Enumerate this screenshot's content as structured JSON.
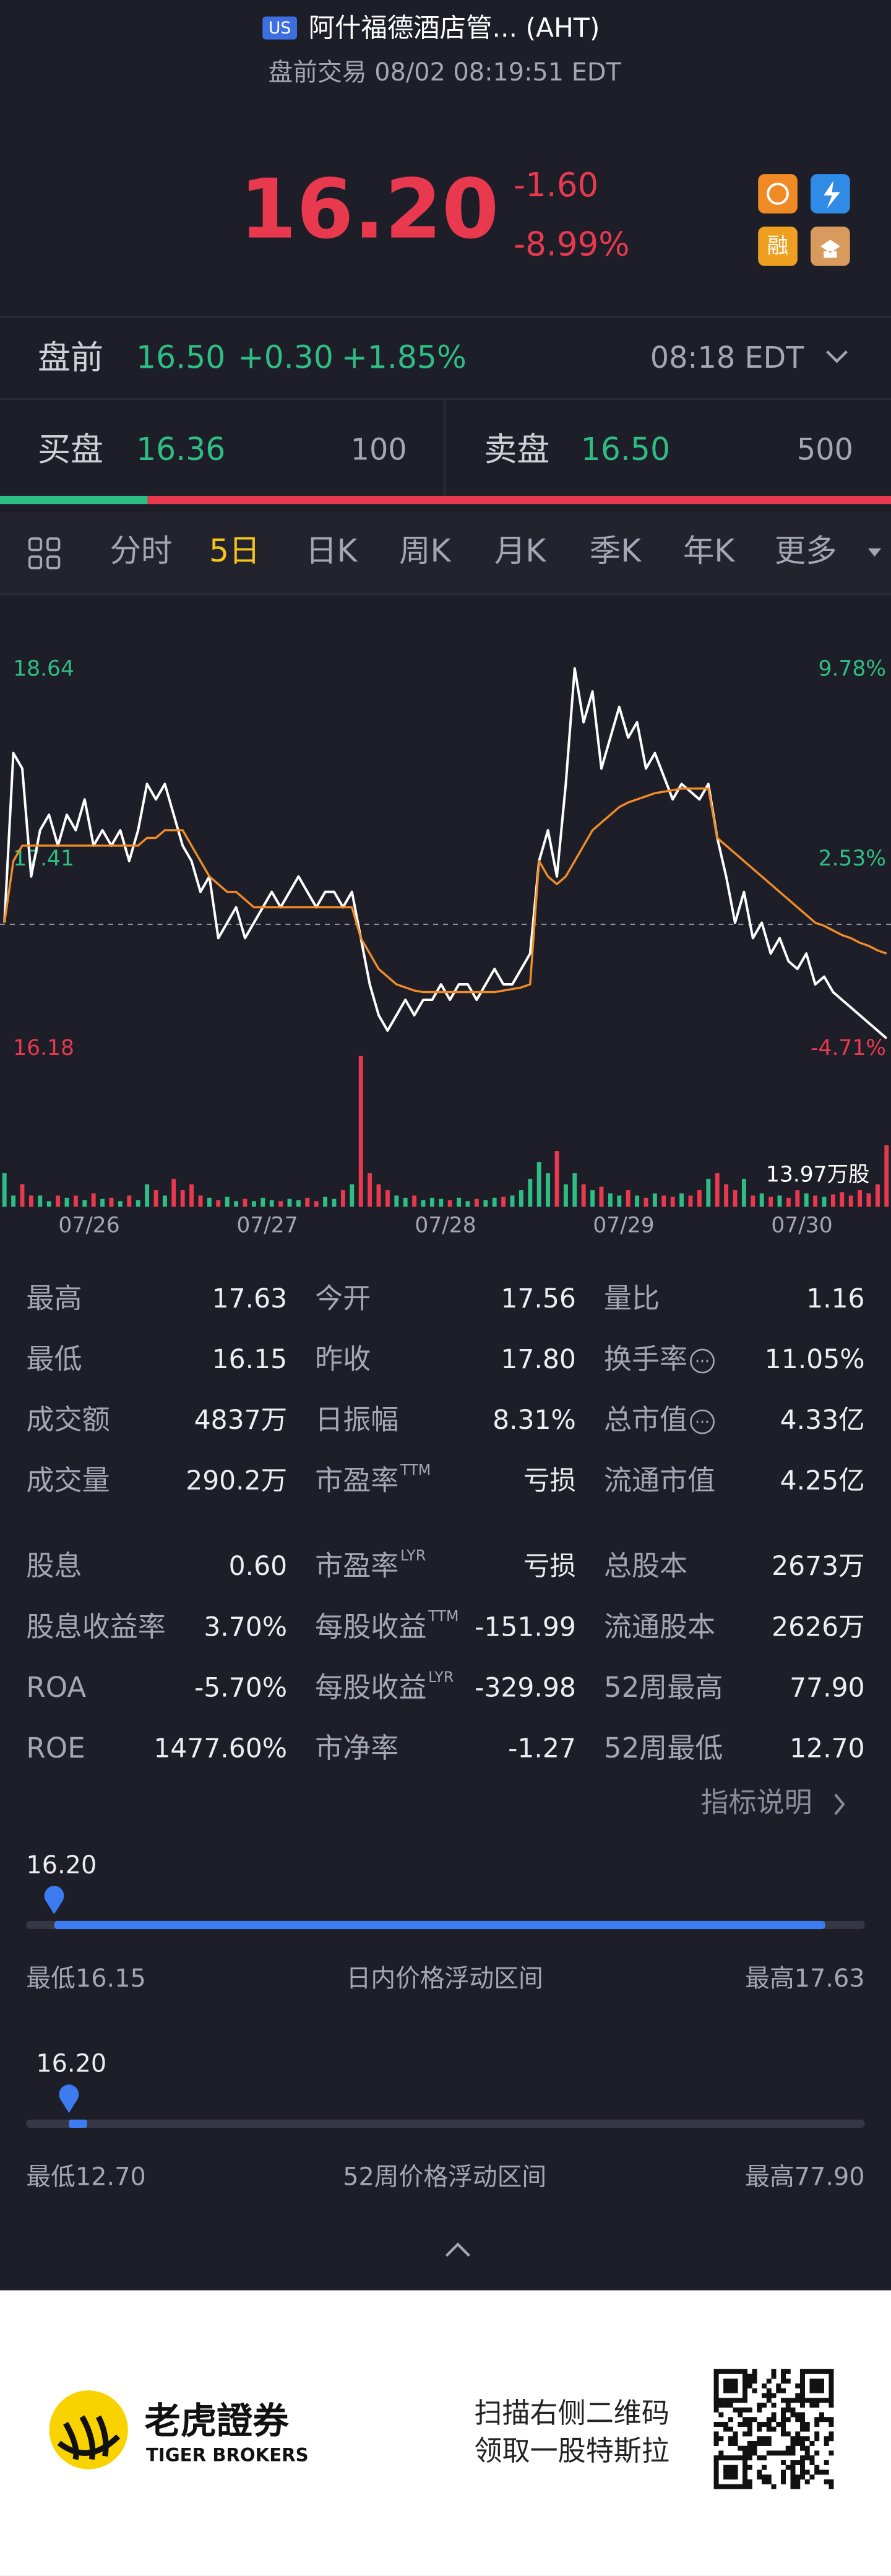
{
  "header": {
    "exchange": "US",
    "name": "阿什福德酒店管... (AHT)",
    "status": "盘前交易 08/02 08:19:51 EDT"
  },
  "quote": {
    "price": "16.20",
    "change": "-1.60",
    "change_pct": "-8.99%",
    "badge": "融"
  },
  "premarket": {
    "label": "盘前",
    "price": "16.50",
    "change": "+0.30",
    "change_pct": "+1.85%",
    "time": "08:18 EDT"
  },
  "bid": {
    "label": "买盘",
    "price": "16.36",
    "size": "100"
  },
  "ask": {
    "label": "卖盘",
    "price": "16.50",
    "size": "500"
  },
  "tabs": {
    "items": [
      "分时",
      "5日",
      "日K",
      "周K",
      "月K",
      "季K",
      "年K",
      "更多"
    ],
    "active": 1
  },
  "chart_data": {
    "type": "line",
    "days": [
      "07/26",
      "07/27",
      "07/28",
      "07/29",
      "07/30"
    ],
    "ylim": [
      16.18,
      18.64
    ],
    "yticks": [
      18.64,
      17.41,
      16.18
    ],
    "y2lim": [
      -4.71,
      9.78
    ],
    "y2ticks": [
      {
        "value": 9.78,
        "label": "9.78%"
      },
      {
        "value": 2.53,
        "label": "2.53%"
      },
      {
        "value": -4.71,
        "label": "-4.71%"
      }
    ],
    "up_color": "#2ebd85",
    "down_color": "#e8394f",
    "series": [
      {
        "color": "#ffffff",
        "values": [
          17.0,
          18.1,
          18.0,
          17.3,
          17.6,
          17.7,
          17.5,
          17.7,
          17.6,
          17.8,
          17.5,
          17.6,
          17.5,
          17.6,
          17.4,
          17.6,
          17.9,
          17.8,
          17.9,
          17.7,
          17.5,
          17.4,
          17.2,
          17.3,
          16.9,
          17.0,
          17.1,
          16.9,
          17.0,
          17.1,
          17.2,
          17.1,
          17.2,
          17.3,
          17.2,
          17.1,
          17.2,
          17.2,
          17.1,
          17.2,
          16.9,
          16.6,
          16.4,
          16.3,
          16.4,
          16.5,
          16.4,
          16.5,
          16.5,
          16.6,
          16.5,
          16.6,
          16.6,
          16.5,
          16.6,
          16.7,
          16.6,
          16.6,
          16.7,
          16.8,
          17.4,
          17.6,
          17.3,
          17.9,
          18.65,
          18.3,
          18.5,
          18.0,
          18.2,
          18.4,
          18.2,
          18.3,
          18.0,
          18.1,
          17.95,
          17.8,
          17.9,
          17.85,
          17.8,
          17.9,
          17.55,
          17.3,
          17.0,
          17.2,
          16.9,
          17.0,
          16.8,
          16.9,
          16.75,
          16.7,
          16.8,
          16.6,
          16.65,
          16.55,
          16.5,
          16.45,
          16.4,
          16.35,
          16.3,
          16.25
        ]
      },
      {
        "color": "#f28c28",
        "values": [
          17.0,
          17.4,
          17.5,
          17.5,
          17.5,
          17.5,
          17.5,
          17.5,
          17.5,
          17.5,
          17.5,
          17.5,
          17.5,
          17.5,
          17.5,
          17.5,
          17.55,
          17.55,
          17.6,
          17.6,
          17.6,
          17.5,
          17.4,
          17.3,
          17.25,
          17.2,
          17.2,
          17.15,
          17.1,
          17.1,
          17.1,
          17.1,
          17.1,
          17.1,
          17.1,
          17.1,
          17.1,
          17.1,
          17.1,
          17.1,
          16.9,
          16.8,
          16.7,
          16.65,
          16.6,
          16.58,
          16.56,
          16.55,
          16.55,
          16.55,
          16.55,
          16.55,
          16.55,
          16.55,
          16.55,
          16.55,
          16.56,
          16.57,
          16.58,
          16.6,
          17.4,
          17.3,
          17.25,
          17.3,
          17.4,
          17.5,
          17.6,
          17.65,
          17.7,
          17.75,
          17.78,
          17.8,
          17.82,
          17.84,
          17.85,
          17.86,
          17.87,
          17.87,
          17.87,
          17.87,
          17.55,
          17.5,
          17.45,
          17.4,
          17.35,
          17.3,
          17.25,
          17.2,
          17.15,
          17.1,
          17.05,
          17.0,
          16.98,
          16.95,
          16.92,
          16.9,
          16.87,
          16.85,
          16.82,
          16.8
        ]
      }
    ],
    "volume": {
      "scale": {
        "value": 13.97,
        "label": "13.97万股"
      },
      "values": [
        3,
        1,
        2,
        1,
        1,
        0.5,
        1,
        0.8,
        1,
        0.6,
        1.2,
        0.7,
        0.8,
        0.5,
        1,
        0.6,
        2,
        1.5,
        1,
        2.5,
        1.5,
        2,
        1,
        0.8,
        0.6,
        0.9,
        0.5,
        0.7,
        0.5,
        0.8,
        0.6,
        0.5,
        0.7,
        0.6,
        0.8,
        0.5,
        0.9,
        0.7,
        1.5,
        2,
        13.5,
        3,
        2,
        1.5,
        1,
        0.8,
        1,
        0.6,
        0.8,
        0.7,
        0.6,
        0.8,
        0.5,
        0.7,
        0.6,
        0.8,
        0.9,
        1,
        1.5,
        2.5,
        4,
        3,
        5,
        2,
        3,
        2,
        1.5,
        1.8,
        1.2,
        1,
        1.5,
        1,
        0.8,
        1.2,
        1,
        0.9,
        1.2,
        1,
        1.5,
        2.5,
        3,
        2,
        1.5,
        2.5,
        1,
        1.2,
        0.9,
        1,
        0.8,
        1.5,
        1.2,
        1,
        0.9,
        1.1,
        1.3,
        1,
        1.5,
        1.2,
        2,
        5.5
      ]
    }
  },
  "stats": [
    [
      {
        "label": "最高",
        "value": "17.63"
      },
      {
        "label": "今开",
        "value": "17.56"
      },
      {
        "label": "量比",
        "value": "1.16"
      }
    ],
    [
      {
        "label": "最低",
        "value": "16.15"
      },
      {
        "label": "昨收",
        "value": "17.80"
      },
      {
        "label": "换手率",
        "info": true,
        "value": "11.05%"
      }
    ],
    [
      {
        "label": "成交额",
        "value": "4837万"
      },
      {
        "label": "日振幅",
        "value": "8.31%"
      },
      {
        "label": "总市值",
        "info": true,
        "value": "4.33亿"
      }
    ],
    [
      {
        "label": "成交量",
        "value": "290.2万"
      },
      {
        "label": "市盈率",
        "sup": "TTM",
        "value": "亏损"
      },
      {
        "label": "流通市值",
        "value": "4.25亿"
      }
    ],
    [
      {
        "label": "股息",
        "value": "0.60"
      },
      {
        "label": "市盈率",
        "sup": "LYR",
        "value": "亏损"
      },
      {
        "label": "总股本",
        "value": "2673万"
      }
    ],
    [
      {
        "label": "股息收益率",
        "value": "3.70%"
      },
      {
        "label": "每股收益",
        "sup": "TTM",
        "value": "-151.99"
      },
      {
        "label": "流通股本",
        "value": "2626万"
      }
    ],
    [
      {
        "label": "ROA",
        "value": "-5.70%"
      },
      {
        "label": "每股收益",
        "sup": "LYR",
        "value": "-329.98"
      },
      {
        "label": "52周最高",
        "value": "77.90"
      }
    ],
    [
      {
        "label": "ROE",
        "value": "1477.60%"
      },
      {
        "label": "市净率",
        "value": "-1.27"
      },
      {
        "label": "52周最低",
        "value": "12.70"
      }
    ]
  ],
  "stats_link": "指标说明",
  "ranges": [
    {
      "current": "16.20",
      "low": "最低16.15",
      "title": "日内价格浮动区间",
      "high": "最高17.63"
    },
    {
      "current": "16.20",
      "low": "最低12.70",
      "title": "52周价格浮动区间",
      "high": "最高77.90"
    }
  ],
  "footer": {
    "brand": "老虎證券",
    "brand_en": "TIGER BROKERS",
    "promo": [
      "扫描右侧二维码",
      "领取一股特斯拉"
    ]
  }
}
